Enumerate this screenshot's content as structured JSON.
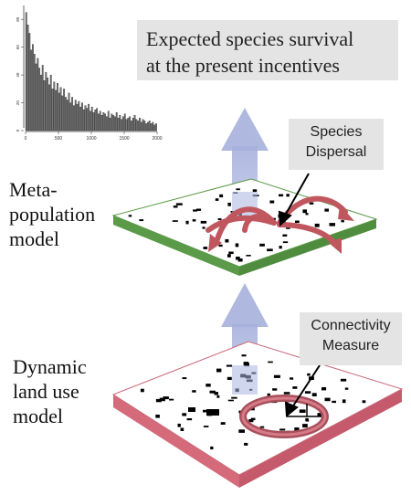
{
  "title": {
    "lines": [
      "Expected species survival",
      "at the present incentives"
    ]
  },
  "callouts": {
    "dispersal": [
      "Species",
      "Dispersal"
    ],
    "connectivity": [
      "Connectivity",
      "Measure"
    ]
  },
  "labels": {
    "meta_model": [
      "Meta-",
      "population",
      "model"
    ],
    "dynamic_model": [
      "Dynamic",
      "land use",
      "model"
    ]
  },
  "colors": {
    "meta_plate_edge": "#5b9a48",
    "land_plate_edge": "#d46a7a",
    "arrow_fill": "#aab4de",
    "dispersal_arrows": "#c0575f",
    "callout_bg": "#e4e4e4"
  },
  "chart_data": {
    "type": "bar",
    "x_ticks": [
      "0",
      "500",
      "1000",
      "1500",
      "2000"
    ],
    "y_ticks": [
      "0",
      "20",
      "40",
      "60",
      "80"
    ],
    "xlim": [
      0,
      2000
    ],
    "ylim": [
      0,
      90
    ],
    "bin_width": 25,
    "values": [
      85,
      76,
      70,
      58,
      62,
      55,
      48,
      52,
      45,
      40,
      47,
      36,
      42,
      38,
      33,
      40,
      30,
      35,
      29,
      34,
      27,
      31,
      25,
      30,
      24,
      22,
      27,
      20,
      24,
      18,
      22,
      19,
      21,
      17,
      20,
      15,
      18,
      16,
      19,
      14,
      17,
      13,
      15,
      16,
      12,
      14,
      11,
      13,
      12,
      10,
      14,
      9,
      12,
      11,
      10,
      13,
      9,
      11,
      8,
      10,
      12,
      8,
      9,
      10,
      7,
      9,
      11,
      8,
      7,
      9,
      6,
      8,
      7,
      5,
      6,
      7,
      5,
      6,
      4,
      5
    ]
  }
}
